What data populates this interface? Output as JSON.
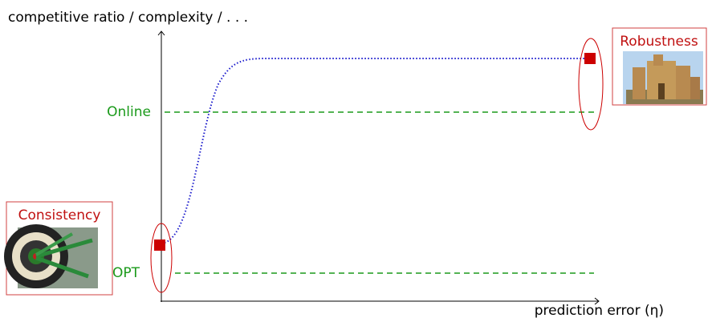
{
  "axes": {
    "y_label": "competitive ratio / complexity / . . .",
    "x_label": "prediction error (η)"
  },
  "levels": {
    "online": "Online",
    "opt": "OPT"
  },
  "boxes": {
    "consistency": "Consistency",
    "robustness": "Robustness"
  }
}
